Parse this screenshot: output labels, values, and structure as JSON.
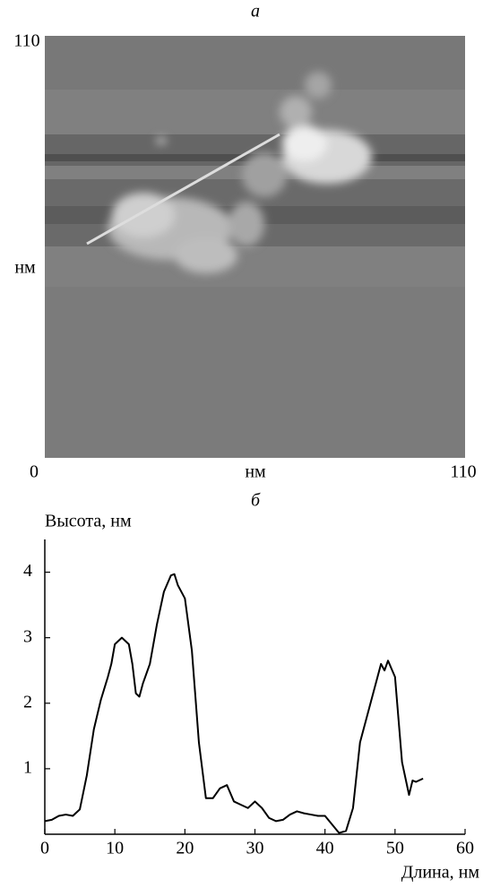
{
  "panel_a": {
    "label": "а",
    "y_top": "110",
    "y_unit": "нм",
    "origin": "0",
    "x_unit": "нм",
    "x_right": "110"
  },
  "chart_data": {
    "type": "line",
    "title": "б",
    "y_label": "Высота, нм",
    "x_label": "Длина, нм",
    "xlim": [
      0,
      60
    ],
    "xticks": [
      0,
      10,
      20,
      30,
      40,
      50,
      60
    ],
    "ylim": [
      0,
      4.5
    ],
    "yticks": [
      1,
      2,
      3,
      4
    ],
    "series": [
      {
        "color": "#000000",
        "x": [
          0,
          1,
          2,
          3,
          4,
          5,
          6,
          7,
          8,
          9,
          9.5,
          10,
          11,
          12,
          12.5,
          13,
          13.5,
          14,
          15,
          16,
          17,
          18,
          18.5,
          19,
          20,
          21,
          22,
          23,
          24,
          25,
          26,
          27,
          28,
          29,
          30,
          31,
          32,
          33,
          34,
          35,
          36,
          37,
          38,
          39,
          40,
          41,
          42,
          43,
          44,
          45,
          46,
          47,
          48,
          48.5,
          49,
          50,
          51,
          52,
          52.5,
          53,
          54
        ],
        "values": [
          0.2,
          0.22,
          0.28,
          0.3,
          0.28,
          0.38,
          0.9,
          1.6,
          2.05,
          2.4,
          2.6,
          2.9,
          3.0,
          2.9,
          2.6,
          2.15,
          2.1,
          2.3,
          2.6,
          3.2,
          3.7,
          3.95,
          3.97,
          3.8,
          3.6,
          2.8,
          1.4,
          0.55,
          0.55,
          0.7,
          0.75,
          0.5,
          0.45,
          0.4,
          0.5,
          0.4,
          0.25,
          0.2,
          0.22,
          0.3,
          0.35,
          0.32,
          0.3,
          0.28,
          0.28,
          0.15,
          0.02,
          0.05,
          0.4,
          1.4,
          1.8,
          2.2,
          2.6,
          2.5,
          2.65,
          2.4,
          1.1,
          0.6,
          0.82,
          0.8,
          0.85
        ]
      }
    ]
  }
}
